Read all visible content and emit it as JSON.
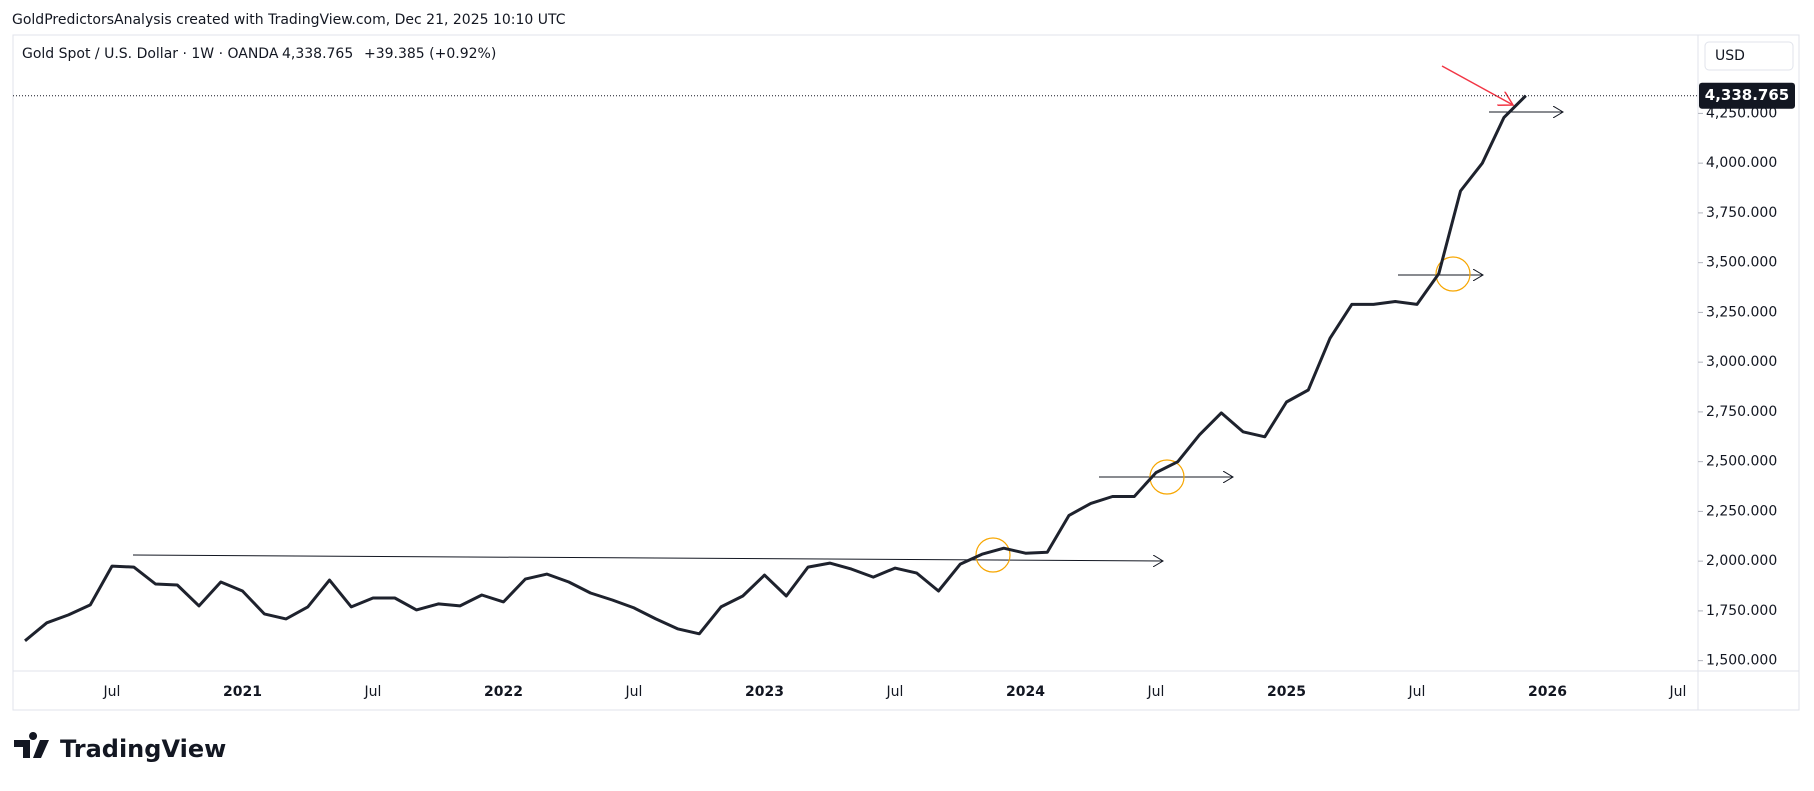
{
  "header": "GoldPredictorsAnalysis created with TradingView.com, Dec 21, 2025 10:10 UTC",
  "chart_data": {
    "type": "line",
    "symbol": "Gold Spot / U.S. Dollar · 1W · OANDA",
    "last": "4,338.765",
    "change": "+39.385 (+0.92%)",
    "currency": "USD",
    "color": "#1e222d",
    "categories": [
      null,
      null,
      null,
      null,
      "Jul",
      null,
      null,
      null,
      null,
      null,
      "2021",
      null,
      null,
      null,
      null,
      null,
      "Jul",
      null,
      null,
      null,
      null,
      null,
      "2022",
      null,
      null,
      null,
      null,
      null,
      "Jul",
      null,
      null,
      null,
      null,
      null,
      "2023",
      null,
      null,
      null,
      null,
      null,
      "Jul",
      null,
      null,
      null,
      null,
      null,
      "2024",
      null,
      null,
      null,
      null,
      null,
      "Jul",
      null,
      null,
      null,
      null,
      null,
      "2025",
      null,
      null,
      null,
      null,
      null,
      "Jul",
      null,
      null,
      null,
      null,
      null,
      "2026",
      null,
      null,
      null,
      null,
      null,
      "Jul"
    ],
    "values": [
      1600,
      1690,
      1730,
      1780,
      1975,
      1970,
      1885,
      1880,
      1775,
      1895,
      1850,
      1735,
      1710,
      1770,
      1905,
      1770,
      1815,
      1815,
      1755,
      1785,
      1775,
      1830,
      1795,
      1910,
      1935,
      1895,
      1840,
      1805,
      1765,
      1710,
      1660,
      1635,
      1770,
      1825,
      1930,
      1825,
      1970,
      1990,
      1960,
      1920,
      1965,
      1940,
      1850,
      1985,
      2035,
      2065,
      2040,
      2045,
      2230,
      2290,
      2325,
      2325,
      2445,
      2500,
      2635,
      2745,
      2650,
      2625,
      2800,
      2860,
      3120,
      3290,
      3290,
      3305,
      3290,
      3445,
      3860,
      4000,
      4230,
      4338.765,
      null,
      null,
      null,
      null,
      null,
      null,
      null
    ],
    "ylim": [
      1448,
      4644
    ],
    "yticks": [
      {
        "value": 1500,
        "label": "1,500.000"
      },
      {
        "value": 1750,
        "label": "1,750.000"
      },
      {
        "value": 2000,
        "label": "2,000.000"
      },
      {
        "value": 2250,
        "label": "2,250.000"
      },
      {
        "value": 2500,
        "label": "2,500.000"
      },
      {
        "value": 2750,
        "label": "2,750.000"
      },
      {
        "value": 3000,
        "label": "3,000.000"
      },
      {
        "value": 3250,
        "label": "3,250.000"
      },
      {
        "value": 3500,
        "label": "3,500.000"
      },
      {
        "value": 3750,
        "label": "3,750.000"
      },
      {
        "value": 4000,
        "label": "4,000.000"
      },
      {
        "value": 4250,
        "label": "4,250.000"
      }
    ],
    "grid": false,
    "logo": "TradingView"
  }
}
